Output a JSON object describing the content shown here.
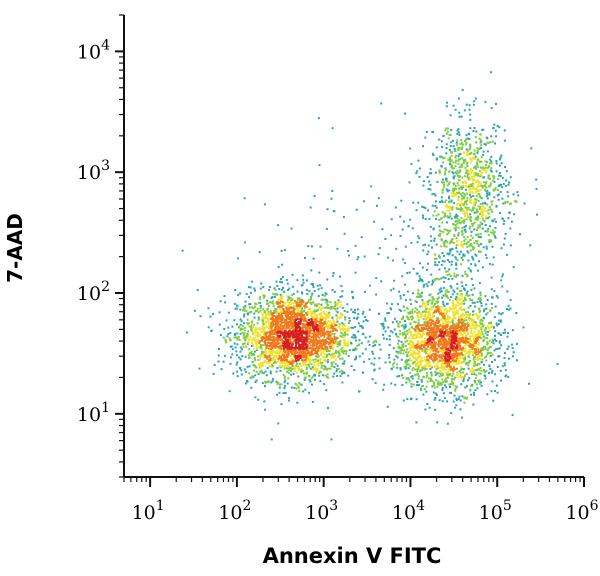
{
  "chart_data": {
    "type": "scatter",
    "xlabel": "Annexin V FITC",
    "ylabel": "7-AAD",
    "x_scale": "log",
    "y_scale": "log",
    "xlim": [
      5,
      1000000
    ],
    "ylim": [
      3,
      20000
    ],
    "x_ticks": [
      {
        "value": 10,
        "base": "10",
        "exp": "1"
      },
      {
        "value": 100,
        "base": "10",
        "exp": "2"
      },
      {
        "value": 1000,
        "base": "10",
        "exp": "3"
      },
      {
        "value": 10000,
        "base": "10",
        "exp": "4"
      },
      {
        "value": 100000,
        "base": "10",
        "exp": "5"
      },
      {
        "value": 1000000,
        "base": "10",
        "exp": "6"
      }
    ],
    "y_ticks": [
      {
        "value": 10,
        "base": "10",
        "exp": "1"
      },
      {
        "value": 100,
        "base": "10",
        "exp": "2"
      },
      {
        "value": 1000,
        "base": "10",
        "exp": "3"
      },
      {
        "value": 10000,
        "base": "10",
        "exp": "4"
      }
    ],
    "grid": false,
    "legend": "none",
    "color_scale": [
      "#1f3fa6",
      "#2aa3b5",
      "#7ccd3f",
      "#f2e12b",
      "#f07a1a",
      "#d42020"
    ],
    "populations": [
      {
        "x_center": 450,
        "y_center": 45,
        "spread_x_decades": 0.33,
        "spread_y_decades": 0.18,
        "count": 2600
      },
      {
        "x_center": 25000,
        "y_center": 40,
        "spread_x_decades": 0.3,
        "spread_y_decades": 0.2,
        "count": 2100
      },
      {
        "x_center": 45000,
        "y_center": 700,
        "spread_x_decades": 0.22,
        "spread_y_decades": 0.3,
        "count": 900
      },
      {
        "x_center": 30000,
        "y_center": 200,
        "spread_x_decades": 0.35,
        "spread_y_decades": 0.4,
        "count": 250
      },
      {
        "x_center": 1500,
        "y_center": 150,
        "spread_x_decades": 0.6,
        "spread_y_decades": 0.5,
        "count": 120
      }
    ]
  }
}
